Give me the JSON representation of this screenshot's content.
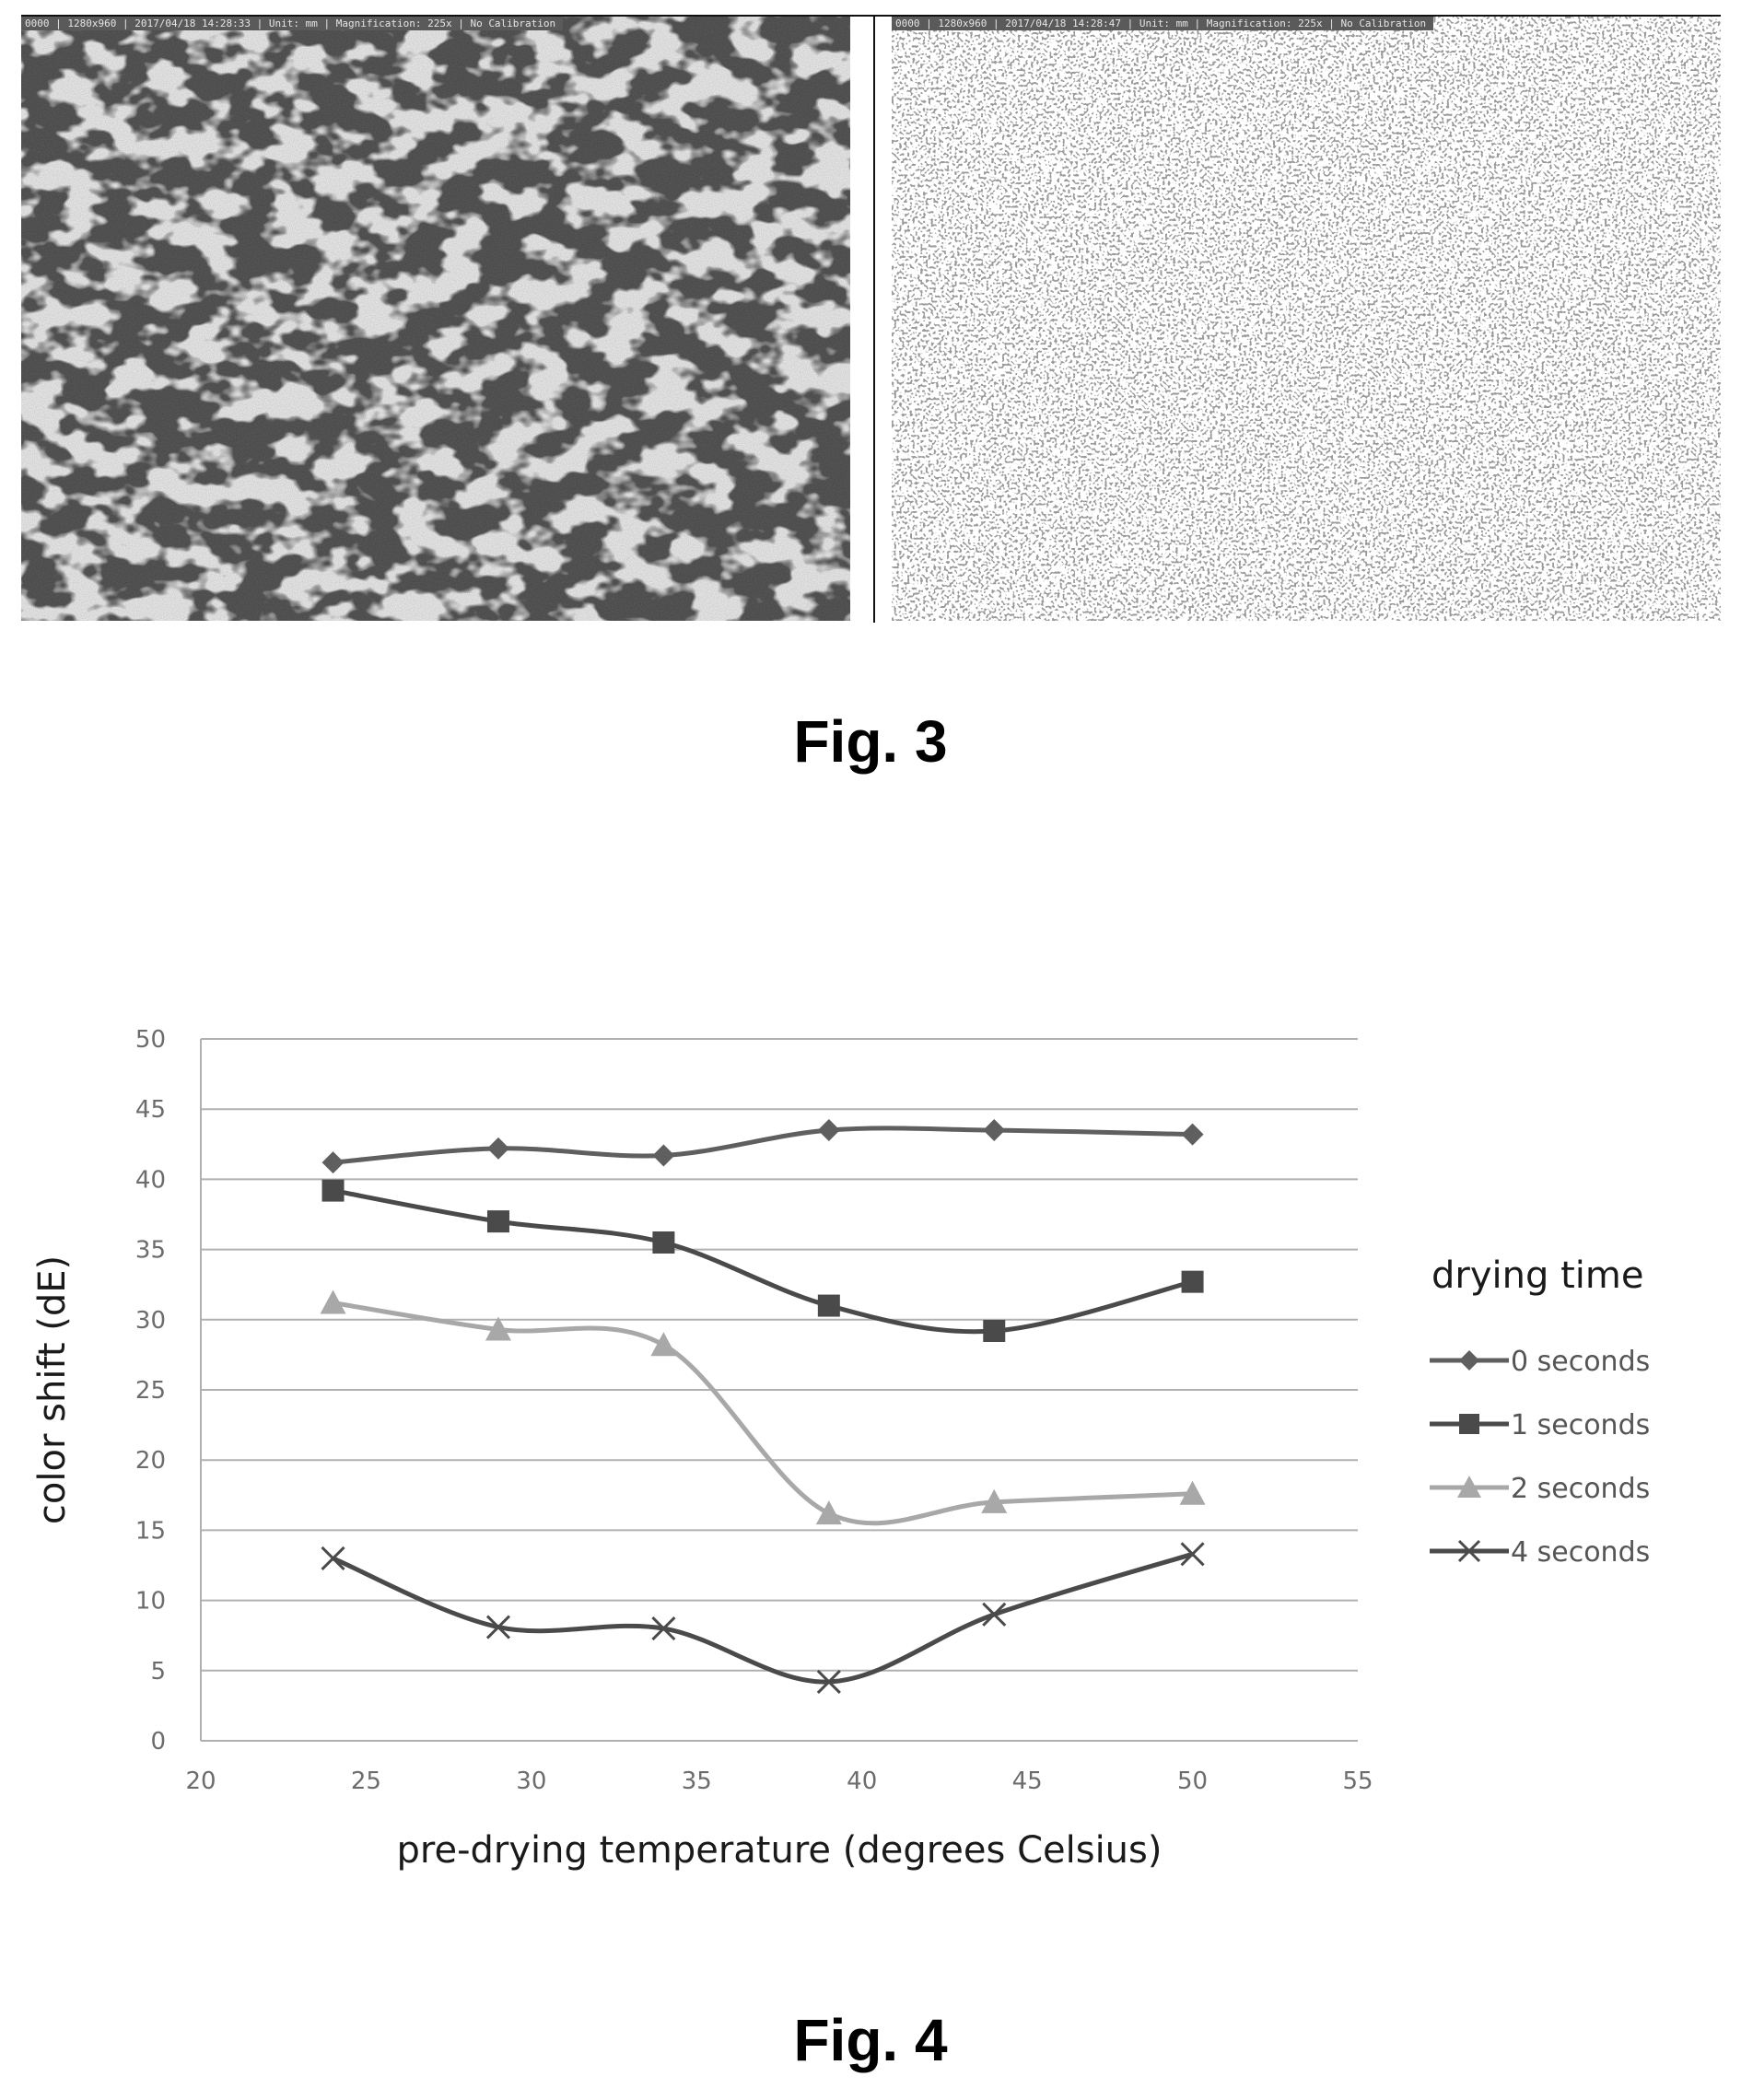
{
  "figure3": {
    "caption": "Fig. 3",
    "left_image": {
      "info": "0000 | 1280x960 | 2017/04/18 14:28:33 | Unit: mm | Magnification: 225x | No Calibration"
    },
    "right_image": {
      "info": "0000 | 1280x960 | 2017/04/18 14:28:47 | Unit: mm | Magnification: 225x | No Calibration"
    }
  },
  "figure4": {
    "caption": "Fig. 4"
  },
  "chart_data": {
    "type": "line",
    "title": "",
    "xlabel": "pre-drying temperature (degrees Celsius)",
    "ylabel": "color shift (dE)",
    "xlim": [
      20,
      55
    ],
    "ylim": [
      0,
      50
    ],
    "xticks": [
      20,
      25,
      30,
      35,
      40,
      45,
      50,
      55
    ],
    "yticks": [
      0,
      5,
      10,
      15,
      20,
      25,
      30,
      35,
      40,
      45,
      50
    ],
    "grid": "horizontal",
    "legend_title": "drying time",
    "legend_position": "right",
    "x": [
      24,
      29,
      34,
      39,
      44,
      50
    ],
    "series": [
      {
        "name": "0 seconds",
        "marker": "diamond",
        "color": "#5f5f5f",
        "values": [
          41.2,
          42.2,
          41.7,
          43.5,
          43.5,
          43.2
        ]
      },
      {
        "name": "1 seconds",
        "marker": "square",
        "color": "#4a4a4a",
        "values": [
          39.2,
          37.0,
          35.5,
          31.0,
          29.2,
          32.7
        ]
      },
      {
        "name": "2 seconds",
        "marker": "triangle",
        "color": "#a8a8a8",
        "values": [
          31.2,
          29.3,
          28.2,
          16.2,
          17.0,
          17.6
        ]
      },
      {
        "name": "4 seconds",
        "marker": "x",
        "color": "#4a4a4a",
        "values": [
          13.0,
          8.1,
          8.0,
          4.2,
          9.0,
          13.3
        ]
      }
    ]
  }
}
